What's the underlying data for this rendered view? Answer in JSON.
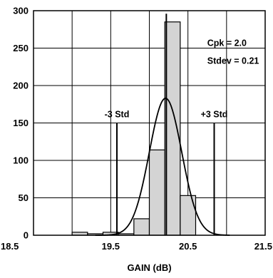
{
  "chart_data": {
    "type": "bar",
    "xlabel": "GAIN (dB)",
    "ylabel": "",
    "xlim": [
      18.5,
      21.5
    ],
    "ylim": [
      0,
      300
    ],
    "x_ticks": [
      "18.5",
      "19.5",
      "20.5",
      "21.5"
    ],
    "y_ticks": [
      "0",
      "50",
      "100",
      "150",
      "200",
      "250",
      "300"
    ],
    "grid": true,
    "histogram": {
      "bins": [
        {
          "x0": 19.0,
          "x1": 19.2,
          "value": 4
        },
        {
          "x0": 19.2,
          "x1": 19.4,
          "value": 2
        },
        {
          "x0": 19.4,
          "x1": 19.6,
          "value": 4
        },
        {
          "x0": 19.6,
          "x1": 19.8,
          "value": 2
        },
        {
          "x0": 19.8,
          "x1": 20.0,
          "value": 22
        },
        {
          "x0": 20.0,
          "x1": 20.2,
          "value": 114
        },
        {
          "x0": 20.2,
          "x1": 20.4,
          "value": 285
        },
        {
          "x0": 20.4,
          "x1": 20.6,
          "value": 53
        }
      ]
    },
    "fit_curve": {
      "type": "normal",
      "mean": 20.21,
      "stdev": 0.21,
      "peak": 183
    },
    "reference_lines": [
      {
        "label": "-3 Std",
        "x": 19.58,
        "y_top": 150
      },
      {
        "label": "+3 Std",
        "x": 20.84,
        "y_top": 150
      },
      {
        "label": "",
        "x": 20.22,
        "y_top": 296
      }
    ],
    "annotations": [
      "Cpk = 2.0",
      "Stdev = 0.21"
    ]
  }
}
